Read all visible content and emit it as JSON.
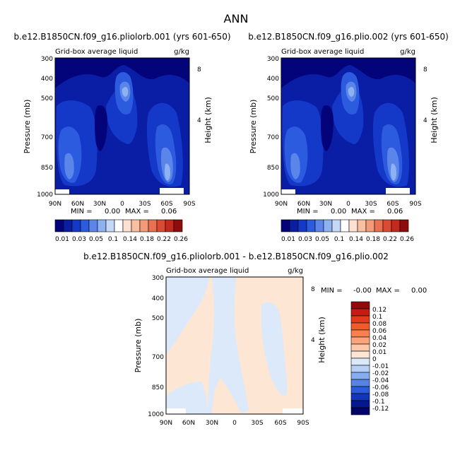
{
  "page": {
    "title": "ANN"
  },
  "chart_data": [
    {
      "type": "heatmap",
      "title": "b.e12.B1850CN.f09_g16.pliolorb.001 (yrs 601-650)",
      "subtitle_left": "Grid-box average liquid",
      "subtitle_right": "g/kg",
      "xlabel": "",
      "ylabel": "Pressure (mb)",
      "ylabel_right": "Height (km)",
      "x_ticks": [
        "90N",
        "60N",
        "30N",
        "0",
        "30S",
        "60S",
        "90S"
      ],
      "y_ticks": [
        "300",
        "400",
        "500",
        "700",
        "850",
        "1000"
      ],
      "y_right_ticks": [
        "8",
        "4"
      ],
      "stats": {
        "min_label": "MIN =",
        "min_value": "0.00",
        "max_label": "MAX =",
        "max_value": "0.06"
      },
      "colorbar": {
        "orientation": "horizontal",
        "labels": [
          "0.01",
          "0.03",
          "0.05",
          "0.1",
          "0.14",
          "0.18",
          "0.22",
          "0.26"
        ],
        "colors": [
          "#04047a",
          "#0a1ea5",
          "#1438c8",
          "#2d5be0",
          "#5a86ea",
          "#8fb1f2",
          "#c4d8f8",
          "#ffffff",
          "#fde0d0",
          "#f9bfa1",
          "#f39a78",
          "#ea7052",
          "#dd4a32",
          "#c22a1e",
          "#8e0c0c"
        ]
      }
    },
    {
      "type": "heatmap",
      "title": "b.e12.B1850CN.f09_g16.plio.002 (yrs 601-650)",
      "subtitle_left": "Grid-box average liquid",
      "subtitle_right": "g/kg",
      "xlabel": "",
      "ylabel": "Pressure (mb)",
      "ylabel_right": "Height (km)",
      "x_ticks": [
        "90N",
        "60N",
        "30N",
        "0",
        "30S",
        "60S",
        "90S"
      ],
      "y_ticks": [
        "300",
        "400",
        "500",
        "700",
        "850",
        "1000"
      ],
      "y_right_ticks": [
        "8",
        "4"
      ],
      "stats": {
        "min_label": "MIN =",
        "min_value": "0.00",
        "max_label": "MAX =",
        "max_value": "0.06"
      },
      "colorbar": {
        "orientation": "horizontal",
        "labels": [
          "0.01",
          "0.03",
          "0.05",
          "0.1",
          "0.14",
          "0.18",
          "0.22",
          "0.26"
        ],
        "colors": [
          "#04047a",
          "#0a1ea5",
          "#1438c8",
          "#2d5be0",
          "#5a86ea",
          "#8fb1f2",
          "#c4d8f8",
          "#ffffff",
          "#fde0d0",
          "#f9bfa1",
          "#f39a78",
          "#ea7052",
          "#dd4a32",
          "#c22a1e",
          "#8e0c0c"
        ]
      }
    },
    {
      "type": "heatmap",
      "title": "b.e12.B1850CN.f09_g16.pliolorb.001 - b.e12.B1850CN.f09_g16.plio.002",
      "subtitle_left": "Grid-box average liquid",
      "subtitle_right": "g/kg",
      "xlabel": "",
      "ylabel": "Pressure (mb)",
      "ylabel_right": "Height (km)",
      "x_ticks": [
        "90N",
        "60N",
        "30N",
        "0",
        "30S",
        "60S",
        "90S"
      ],
      "y_ticks": [
        "300",
        "400",
        "500",
        "700",
        "850",
        "1000"
      ],
      "y_right_ticks": [
        "8",
        "4"
      ],
      "stats": {
        "min_label": "MIN =",
        "min_value": "-0.00",
        "max_label": "MAX =",
        "max_value": "0.00"
      },
      "colorbar": {
        "orientation": "vertical",
        "labels": [
          "0.12",
          "0.1",
          "0.08",
          "0.06",
          "0.04",
          "0.02",
          "0.01",
          "0",
          "-0.01",
          "-0.02",
          "-0.04",
          "-0.06",
          "-0.08",
          "-0.1",
          "-0.12"
        ],
        "colors": [
          "#8e0c0c",
          "#c41e14",
          "#e33a1c",
          "#f25a2a",
          "#f7804e",
          "#fba47c",
          "#fdc8aa",
          "#fde6d4",
          "#dbe9fb",
          "#b5cff5",
          "#84aeef",
          "#5684e6",
          "#2c5bd9",
          "#1236b8",
          "#06188f",
          "#03036b"
        ]
      }
    }
  ]
}
